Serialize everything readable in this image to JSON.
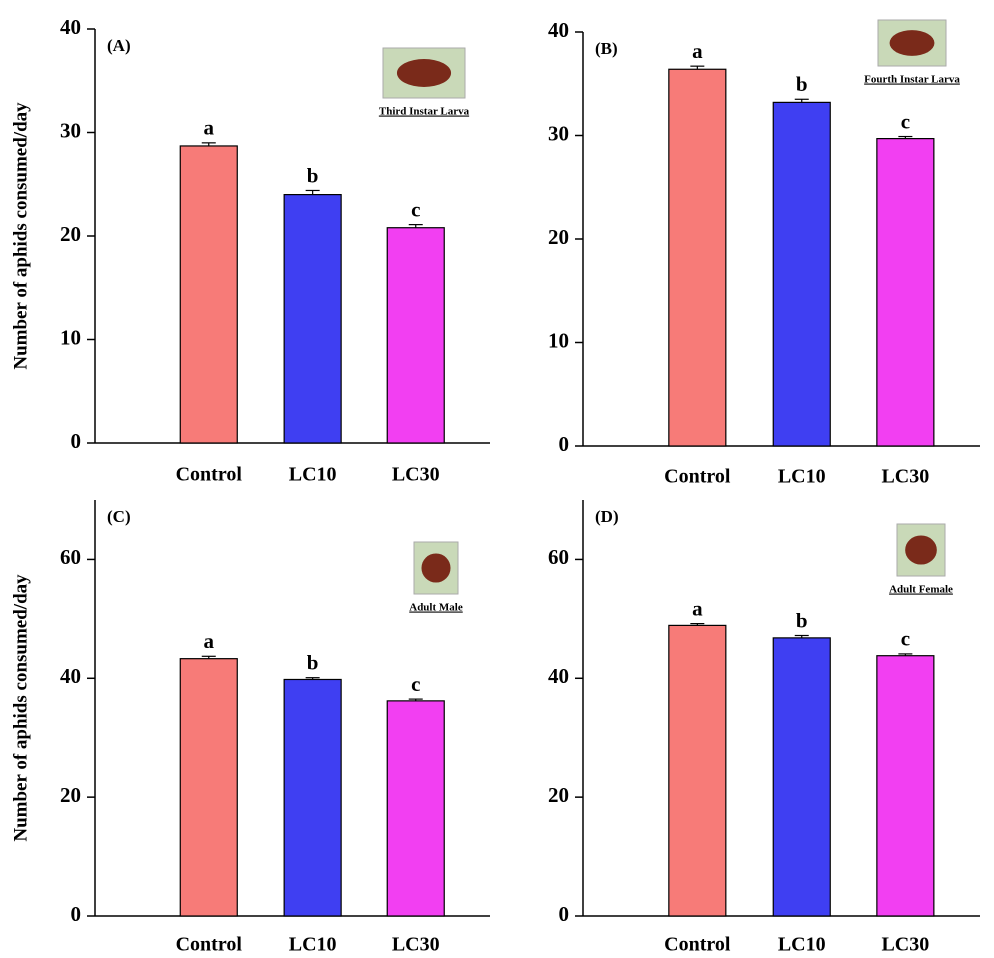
{
  "chart_data": [
    {
      "type": "bar",
      "panel_label": "(A)",
      "image_caption": "Third Instar Larva",
      "y_label": "Number of aphids consumed/day",
      "categories": [
        "Control",
        "LC10",
        "LC30"
      ],
      "values": [
        28.7,
        24.0,
        20.8
      ],
      "errors": [
        0.3,
        0.4,
        0.3
      ],
      "annotations": [
        "a",
        "b",
        "c"
      ],
      "colors": [
        "#f77b78",
        "#3f3ff2",
        "#f23ff2"
      ],
      "ylim": [
        0,
        40
      ],
      "yticks": [
        0,
        10,
        20,
        30,
        40
      ]
    },
    {
      "type": "bar",
      "panel_label": "(B)",
      "image_caption": "Fourth Instar Larva",
      "categories": [
        "Control",
        "LC10",
        "LC30"
      ],
      "values": [
        36.4,
        33.2,
        29.7
      ],
      "errors": [
        0.3,
        0.3,
        0.2
      ],
      "annotations": [
        "a",
        "b",
        "c"
      ],
      "colors": [
        "#f77b78",
        "#3f3ff2",
        "#f23ff2"
      ],
      "ylim": [
        0,
        40
      ],
      "yticks": [
        0,
        10,
        20,
        30,
        40
      ]
    },
    {
      "type": "bar",
      "panel_label": "(C)",
      "image_caption": "Adult Male",
      "y_label": "Number of aphids consumed/day",
      "categories": [
        "Control",
        "LC10",
        "LC30"
      ],
      "values": [
        43.3,
        39.8,
        36.2
      ],
      "errors": [
        0.4,
        0.3,
        0.3
      ],
      "annotations": [
        "a",
        "b",
        "c"
      ],
      "colors": [
        "#f77b78",
        "#3f3ff2",
        "#f23ff2"
      ],
      "ylim": [
        0,
        70
      ],
      "yticks": [
        0,
        20,
        40,
        60
      ]
    },
    {
      "type": "bar",
      "panel_label": "(D)",
      "image_caption": "Adult Female",
      "categories": [
        "Control",
        "LC10",
        "LC30"
      ],
      "values": [
        48.9,
        46.8,
        43.8
      ],
      "errors": [
        0.3,
        0.4,
        0.3
      ],
      "annotations": [
        "a",
        "b",
        "c"
      ],
      "colors": [
        "#f77b78",
        "#3f3ff2",
        "#f23ff2"
      ],
      "ylim": [
        0,
        70
      ],
      "yticks": [
        0,
        20,
        40,
        60
      ]
    }
  ]
}
